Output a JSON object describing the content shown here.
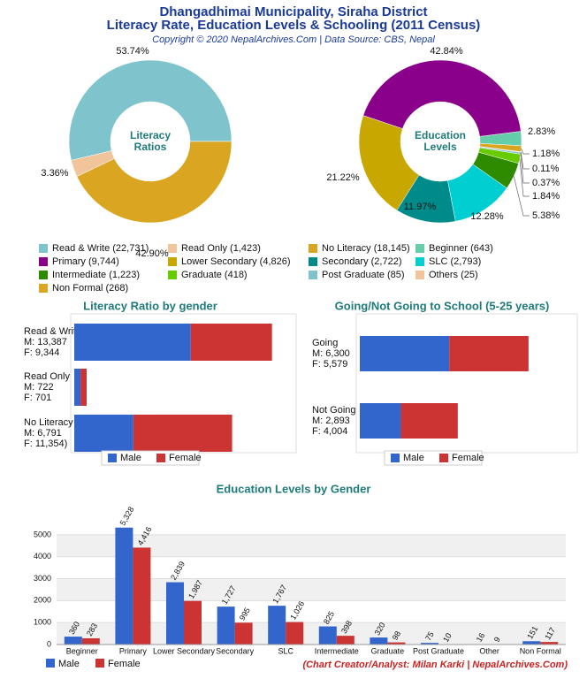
{
  "header": {
    "title": "Dhangadhimai Municipality, Siraha District",
    "subtitle": "Literacy Rate, Education Levels & Schooling (2011 Census)",
    "copyright": "Copyright © 2020 NepalArchives.Com | Data Source: CBS, Nepal"
  },
  "chart_data": [
    {
      "type": "donut",
      "title": "Literacy Ratios",
      "categories": [
        "Read & Write (22,731)",
        "Read Only (1,423)",
        "No Literacy (18,145)"
      ],
      "values": [
        53.74,
        3.36,
        42.9
      ],
      "value_labels": [
        "53.74%",
        "3.36%",
        "42.90%"
      ],
      "colors": [
        "#7fc4cc",
        "#f2c49b",
        "#daa520"
      ]
    },
    {
      "type": "donut",
      "title": "Education Levels",
      "categories": [
        "Beginner (643)",
        "Primary (9,744)",
        "Lower Secondary (4,826)",
        "Secondary (2,722)",
        "SLC (2,793)",
        "Intermediate (1,223)",
        "Graduate (418)",
        "Post Graduate (85)",
        "Others (25)",
        "Non Formal (268)"
      ],
      "values": [
        2.83,
        42.84,
        21.22,
        11.97,
        12.28,
        5.38,
        1.84,
        0.37,
        0.11,
        1.18
      ],
      "value_labels": [
        "2.83%",
        "42.84%",
        "21.22%",
        "11.97%",
        "12.28%",
        "5.38%",
        "1.84%",
        "0.37%",
        "0.11%",
        "1.18%"
      ],
      "colors": [
        "#66cdaa",
        "#8b008b",
        "#c8a800",
        "#008b8b",
        "#00ced1",
        "#2e8b00",
        "#66cc00",
        "#7fc4cc",
        "#f2c49b",
        "#daa520"
      ]
    },
    {
      "type": "hbar",
      "title": "Literacy Ratio by gender",
      "categories": [
        "Read & Write",
        "Read Only",
        "No Literacy"
      ],
      "xlim": [
        0,
        25000
      ],
      "series": [
        {
          "name": "Male",
          "color": "#3366cc",
          "values": [
            13387,
            722,
            6791
          ],
          "value_labels": [
            "M: 13,387",
            "M: 722",
            "M: 6,791"
          ]
        },
        {
          "name": "Female",
          "color": "#cc3333",
          "values": [
            9344,
            701,
            11354
          ],
          "value_labels": [
            "F: 9,344",
            "F: 701",
            "F: 11,354)"
          ]
        }
      ]
    },
    {
      "type": "hbar",
      "title": "Going/Not Going to School (5-25 years)",
      "categories": [
        "Going",
        "Not Going"
      ],
      "xlim": [
        0,
        15000
      ],
      "series": [
        {
          "name": "Male",
          "color": "#3366cc",
          "values": [
            6300,
            2893
          ],
          "value_labels": [
            "M: 6,300",
            "M: 2,893"
          ]
        },
        {
          "name": "Female",
          "color": "#cc3333",
          "values": [
            5579,
            4004
          ],
          "value_labels": [
            "F: 5,579",
            "F: 4,004"
          ]
        }
      ]
    },
    {
      "type": "bar",
      "title": "Education Levels by Gender",
      "categories": [
        "Beginner",
        "Primary",
        "Lower Secondary",
        "Secondary",
        "SLC",
        "Intermediate",
        "Graduate",
        "Post Graduate",
        "Other",
        "Non Formal"
      ],
      "ylim": [
        0,
        5600
      ],
      "yticks": [
        0,
        1000,
        2000,
        3000,
        4000,
        5000
      ],
      "grid": true,
      "series": [
        {
          "name": "Male",
          "color": "#3366cc",
          "values": [
            360,
            5328,
            2839,
            1727,
            1767,
            825,
            320,
            75,
            16,
            151
          ],
          "value_labels": [
            "360",
            "5,328",
            "2,839",
            "1,727",
            "1,767",
            "825",
            "320",
            "75",
            "16",
            "151"
          ]
        },
        {
          "name": "Female",
          "color": "#cc3333",
          "values": [
            283,
            4416,
            1987,
            995,
            1026,
            398,
            98,
            10,
            9,
            117
          ],
          "value_labels": [
            "283",
            "4,416",
            "1,987",
            "995",
            "1,026",
            "398",
            "98",
            "10",
            "9",
            "117"
          ]
        }
      ]
    }
  ],
  "footer": "(Chart Creator/Analyst: Milan Karki | NepalArchives.Com)"
}
